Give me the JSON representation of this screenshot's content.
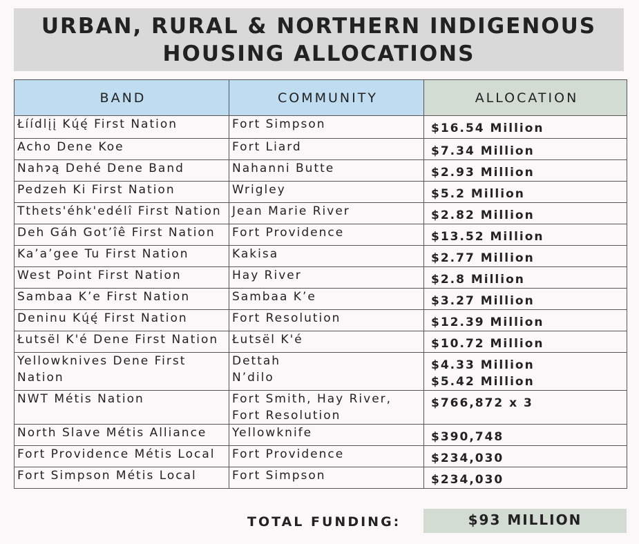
{
  "title": {
    "line1": "URBAN, RURAL & NORTHERN INDIGENOUS",
    "line2": "HOUSING ALLOCATIONS"
  },
  "table": {
    "headers": [
      "BAND",
      "COMMUNITY",
      "ALLOCATION"
    ],
    "rows": [
      [
        "Łíídlįį Kų́ę́ First Nation",
        "Fort Simpson",
        "$16.54 Million"
      ],
      [
        "Acho Dene Koe",
        "Fort Liard",
        "$7.34 Million"
      ],
      [
        "Nahɂą Dehé Dene Band",
        "Nahanni Butte",
        "$2.93 Million"
      ],
      [
        "Pedzeh Ki First Nation",
        "Wrigley",
        "$5.2 Million"
      ],
      [
        "Tthets'éhk'edélî First Nation",
        "Jean Marie River",
        "$2.82 Million"
      ],
      [
        "Deh Gáh Got’îê First Nation",
        "Fort Providence",
        "$13.52 Million"
      ],
      [
        "Ka’a’gee Tu First Nation",
        "Kakisa",
        "$2.77 Million"
      ],
      [
        "West Point First Nation",
        "Hay River",
        "$2.8 Million"
      ],
      [
        "Sambaa K’e First Nation",
        "Sambaa K’e",
        "$3.27 Million"
      ],
      [
        "Deninu Kų́ę́ First Nation",
        "Fort Resolution",
        "$12.39 Million"
      ],
      [
        "Łutsël K'é Dene First Nation",
        "Łutsël K'é",
        "$10.72 Million"
      ],
      [
        "Yellowknives Dene First Nation",
        [
          "Dettah",
          "N’dilo"
        ],
        [
          "$4.33 Million",
          "$5.42 Million"
        ]
      ],
      [
        "NWT Métis Nation",
        "Fort Smith, Hay River, Fort Resolution",
        "$766,872 x 3"
      ],
      [
        "North Slave Métis Alliance",
        "Yellowknife",
        "$390,748"
      ],
      [
        "Fort Providence Métis Local",
        "Fort Providence",
        "$234,030"
      ],
      [
        "Fort Simpson Métis Local",
        "Fort Simpson",
        "$234,030"
      ]
    ]
  },
  "total": {
    "label": "TOTAL FUNDING:",
    "value": "$93 MILLION"
  }
}
